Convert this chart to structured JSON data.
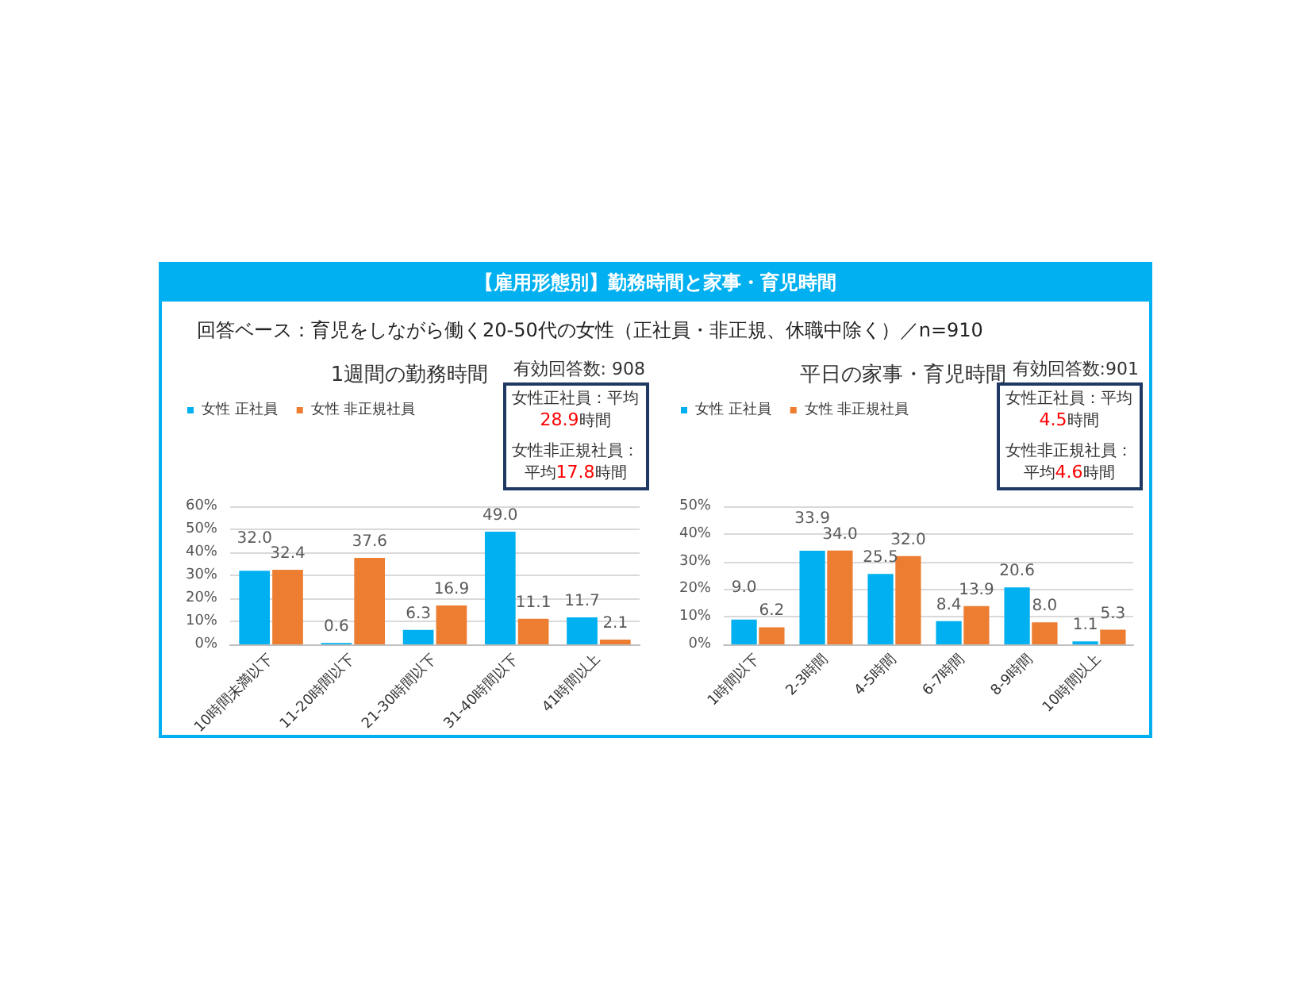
{
  "chart_data": [
    {
      "type": "other",
      "title": "【雇用形態別】勤務時間と家事・育児時間",
      "subtitle": "回答ベース：育児をしながら働く20-50代の女性（正社員・非正規、休職中除く）／n=910"
    },
    {
      "type": "bar",
      "title": "1週間の勤務時間",
      "categories": [
        "10時間未満以下",
        "11-20時間以下",
        "21-30時間以下",
        "31-40時間以下",
        "41時間以上"
      ],
      "series": [
        {
          "name": "女性 正社員",
          "color": "#00b0f0",
          "values": [
            32,
            0.6,
            6.3,
            49,
            11.7
          ],
          "value_labels": [
            "32.0",
            "0.6",
            "6.3",
            "49.0",
            "11.7"
          ]
        },
        {
          "name": "女性 非正規社員",
          "color": "#ed7d31",
          "values": [
            32.4,
            37.6,
            16.9,
            11.1,
            2.1
          ],
          "value_labels": [
            "32.4",
            "37.6",
            "16.9",
            "11.1",
            "2.1"
          ]
        }
      ],
      "ylim": [
        0,
        60
      ],
      "yticks": [
        {
          "value": 0,
          "label": "0%"
        },
        {
          "value": 10,
          "label": "10%"
        },
        {
          "value": 20,
          "label": "20%"
        },
        {
          "value": 30,
          "label": "30%"
        },
        {
          "value": 40,
          "label": "40%"
        },
        {
          "value": 50,
          "label": "50%"
        },
        {
          "value": 60,
          "label": "60%"
        }
      ],
      "grid": "y",
      "legend": "top left",
      "annotations": [
        "有効回答数: 908",
        "女性正社員：平均28.9時間",
        "女性非正規社員：平均17.8時間"
      ]
    },
    {
      "type": "bar",
      "title": "平日の家事・育児時間",
      "categories": [
        "1時間以下",
        "2-3時間",
        "4-5時間",
        "6-7時間",
        "8-9時間",
        "10時間以上"
      ],
      "series": [
        {
          "name": "女性 正社員",
          "color": "#00b0f0",
          "values": [
            9,
            33.9,
            25.5,
            8.4,
            20.6,
            1.1
          ],
          "value_labels": [
            "9.0",
            "33.9",
            "25.5",
            "8.4",
            "20.6",
            "1.1"
          ]
        },
        {
          "name": "女性 非正規社員",
          "color": "#ed7d31",
          "values": [
            6.2,
            34,
            32,
            13.9,
            8,
            5.3
          ],
          "value_labels": [
            "6.2",
            "34.0",
            "32.0",
            "13.9",
            "8.0",
            "5.3"
          ]
        }
      ],
      "ylim": [
        0,
        50
      ],
      "yticks": [
        {
          "value": 0,
          "label": "0%"
        },
        {
          "value": 10,
          "label": "10%"
        },
        {
          "value": 20,
          "label": "20%"
        },
        {
          "value": 30,
          "label": "30%"
        },
        {
          "value": 40,
          "label": "40%"
        },
        {
          "value": 50,
          "label": "50%"
        }
      ],
      "grid": "y",
      "legend": "top left",
      "annotations": [
        "有効回答数:901",
        "女性正社員：平均4.5時間",
        "女性非正規社員：平均4.6時間"
      ]
    }
  ]
}
